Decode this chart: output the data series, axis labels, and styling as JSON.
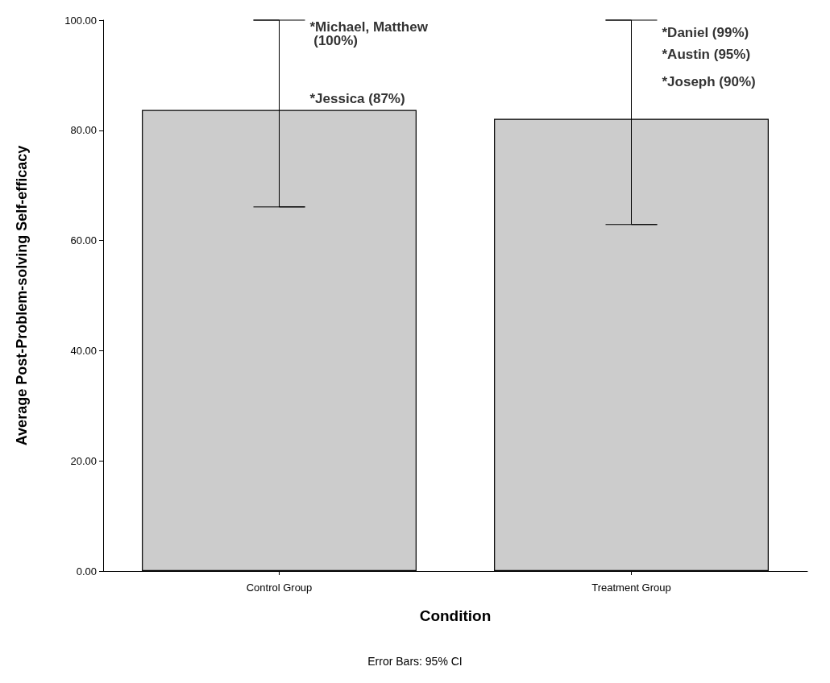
{
  "chart_data": {
    "type": "bar",
    "xlabel": "Condition",
    "ylabel": "Average Post-Problem-solving Self-efficacy",
    "categories": [
      "Control Group",
      "Treatment Group"
    ],
    "values": [
      83.7,
      82.1
    ],
    "color": "#cccccc",
    "errors": [
      [
        66.1,
        100
      ],
      [
        62.9,
        100
      ]
    ],
    "ylim": [
      0,
      100
    ],
    "yticks": [
      {
        "value": 0,
        "label": "0.00"
      },
      {
        "value": 20,
        "label": "20.00"
      },
      {
        "value": 40,
        "label": "40.00"
      },
      {
        "value": 60,
        "label": "60.00"
      },
      {
        "value": 80,
        "label": "80.00"
      },
      {
        "value": 100,
        "label": "100.00"
      }
    ],
    "grid": false,
    "annotations": [
      {
        "text": "*Michael, Matthew (100%)",
        "x": "Control Group",
        "y": 100
      },
      {
        "text": "*Jessica (87%)",
        "x": "Control Group",
        "y": 87
      },
      {
        "text": "*Daniel (99%)",
        "x": "Treatment Group",
        "y": 99
      },
      {
        "text": "*Austin (95%)",
        "x": "Treatment Group",
        "y": 95
      },
      {
        "text": "*Joseph (90%)",
        "x": "Treatment Group",
        "y": 90
      },
      "Error Bars: 95% CI"
    ]
  }
}
